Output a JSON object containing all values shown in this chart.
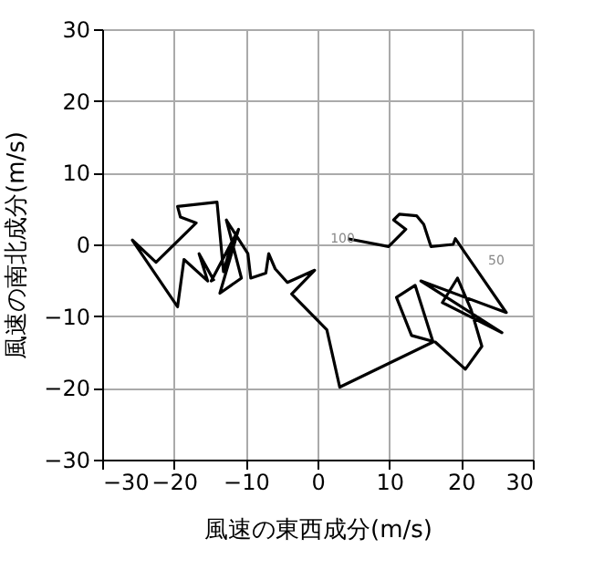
{
  "chart_data": {
    "type": "line",
    "xlabel": "風速の東西成分(m/s)",
    "ylabel": "風速の南北成分(m/s)",
    "x": [
      4.2,
      9.9,
      12.3,
      10.6,
      11.4,
      13.8,
      14.8,
      15.8,
      18.9,
      19.2,
      26.3,
      14.4,
      25.7,
      17.4,
      19.5,
      21.4,
      22.9,
      20.6,
      16.4,
      13.1,
      11.0,
      13.6,
      16.1,
      3.1,
      1.3,
      -3.6,
      -0.4,
      -4.2,
      -5.9,
      -6.8,
      -7.2,
      -9.3,
      -9.7,
      -12.7,
      -10.6,
      -13.6,
      -11.0,
      -14.8,
      -11.9,
      -13.1,
      -14.0,
      -19.5,
      -19.1,
      -16.9,
      -22.5,
      -25.8,
      -19.5,
      -18.6,
      -15.3,
      -16.5,
      -14.4
    ],
    "series": [
      {
        "color": "#000000",
        "values": [
          0.8,
          -0.3,
          2.1,
          3.4,
          4.2,
          4.0,
          2.8,
          -0.3,
          0.0,
          0.8,
          -9.5,
          -5.1,
          -12.3,
          -8.1,
          -4.7,
          -9.1,
          -14.2,
          -17.4,
          -13.6,
          -12.7,
          -7.4,
          -5.7,
          -13.6,
          -19.9,
          -11.9,
          -6.9,
          -3.6,
          -5.3,
          -3.4,
          -1.3,
          -4.0,
          -4.7,
          -1.3,
          3.4,
          -4.7,
          -6.8,
          2.1,
          -5.1,
          0.4,
          -3.8,
          5.9,
          5.3,
          3.8,
          3.0,
          -2.5,
          0.6,
          -8.7,
          -2.1,
          -5.1,
          -1.3,
          -5.1
        ]
      }
    ],
    "xlim": [
      -30,
      30
    ],
    "ylim": [
      -30,
      30
    ],
    "xticks": [
      -30,
      -20,
      -10,
      0,
      10,
      20,
      30
    ],
    "yticks": [
      -30,
      -20,
      -10,
      0,
      10,
      20,
      30
    ],
    "grid": true,
    "marker": "none",
    "line_style": "solid",
    "annotations": [
      {
        "text": "100",
        "x": 3.5,
        "y": 0.7
      },
      "50"
    ]
  }
}
